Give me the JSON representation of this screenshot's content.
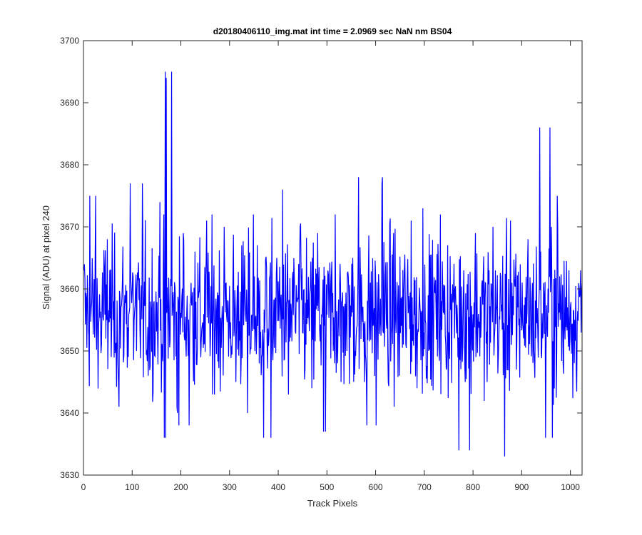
{
  "chart_data": {
    "type": "line",
    "title": "d20180406110_img.mat int time = 2.0969 sec  NaN nm BS04",
    "xlabel": "Track Pixels",
    "ylabel": "Signal (ADU) at pixel 240",
    "xlim": [
      0,
      1024
    ],
    "ylim": [
      3630,
      3700
    ],
    "xticks": [
      0,
      100,
      200,
      300,
      400,
      500,
      600,
      700,
      800,
      900,
      1000
    ],
    "yticks": [
      3630,
      3640,
      3650,
      3660,
      3670,
      3680,
      3690,
      3700
    ],
    "grid": false,
    "legend": "none",
    "line_color": "#0000FF",
    "axes_color": "#262626",
    "series": [
      {
        "x_start": 1,
        "x_step": 1,
        "y_mean": 3656,
        "y_noise_std": 6,
        "values_sampled": [
          3663,
          3645,
          3675,
          3651,
          3668,
          3655,
          3641,
          3659,
          3662,
          3650,
          3677,
          3646,
          3658,
          3674,
          3636,
          3695,
          3640,
          3669,
          3638,
          3666,
          3649,
          3671,
          3643,
          3659,
          3670,
          3652,
          3645,
          3667,
          3640,
          3672,
          3648,
          3656,
          3636,
          3665,
          3676,
          3643,
          3662,
          3670,
          3651,
          3644,
          3669,
          3637,
          3658,
          3672,
          3645,
          3650,
          3665,
          3678,
          3645,
          3661,
          3638,
          3677,
          3650,
          3669,
          3646,
          3658,
          3671,
          3644,
          3673,
          3650,
          3660,
          3672,
          3647,
          3658,
          3649,
          3663,
          3634,
          3669,
          3655,
          3645,
          3670,
          3652,
          3633,
          3671,
          3647,
          3661,
          3668,
          3650,
          3686,
          3636,
          3670,
          3675,
          3648,
          3663,
          3655
        ]
      }
    ],
    "spikes": [
      {
        "x": 13,
        "y": 3675
      },
      {
        "x": 96,
        "y": 3677
      },
      {
        "x": 166,
        "y": 3636
      },
      {
        "x": 168,
        "y": 3695
      },
      {
        "x": 170,
        "y": 3694
      },
      {
        "x": 196,
        "y": 3638
      },
      {
        "x": 370,
        "y": 3636
      },
      {
        "x": 497,
        "y": 3637
      },
      {
        "x": 582,
        "y": 3638
      },
      {
        "x": 614,
        "y": 3678
      },
      {
        "x": 771,
        "y": 3634
      },
      {
        "x": 865,
        "y": 3633
      },
      {
        "x": 958,
        "y": 3686
      },
      {
        "x": 963,
        "y": 3636
      }
    ]
  }
}
